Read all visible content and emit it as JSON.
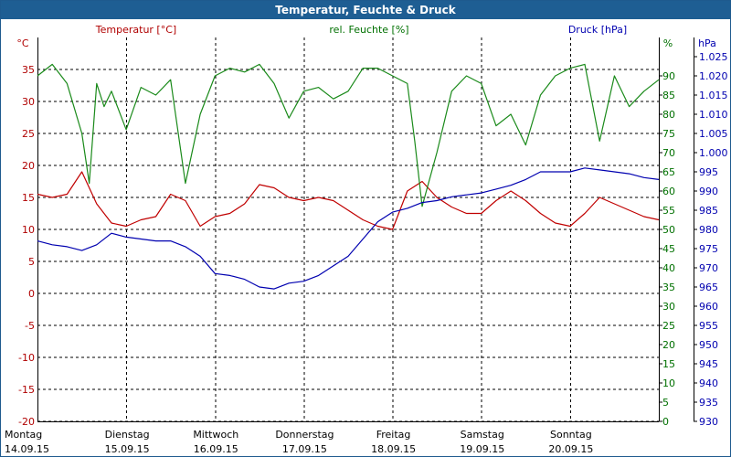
{
  "chart_data": {
    "type": "line",
    "title": "Temperatur, Feuchte & Druck",
    "days": [
      {
        "weekday": "Montag",
        "date": "14.09.15"
      },
      {
        "weekday": "Dienstag",
        "date": "15.09.15"
      },
      {
        "weekday": "Mittwoch",
        "date": "16.09.15"
      },
      {
        "weekday": "Donnerstag",
        "date": "17.09.15"
      },
      {
        "weekday": "Freitag",
        "date": "18.09.15"
      },
      {
        "weekday": "Samstag",
        "date": "19.09.15"
      },
      {
        "weekday": "Sonntag",
        "date": "20.09.15"
      }
    ],
    "x_unit": "hours since 14.09.15 00:00",
    "x_range": [
      0,
      168
    ],
    "axes": {
      "temperature": {
        "label": "Temperatur [°C]",
        "unit": "°C",
        "range": [
          -20,
          40
        ],
        "ticks": [
          -20,
          -15,
          -10,
          -5,
          0,
          5,
          10,
          15,
          20,
          25,
          30,
          35
        ],
        "color": "#b00000"
      },
      "humidity": {
        "label": "rel. Feuchte [%]",
        "unit": "%",
        "range": [
          0,
          100
        ],
        "ticks": [
          0,
          5,
          10,
          15,
          20,
          25,
          30,
          35,
          40,
          45,
          50,
          55,
          60,
          65,
          70,
          75,
          80,
          85,
          90
        ],
        "color": "#007000"
      },
      "pressure": {
        "label": "Druck [hPa]",
        "unit": "hPa",
        "range": [
          930,
          1030
        ],
        "ticks": [
          "930",
          "935",
          "940",
          "945",
          "950",
          "955",
          "960",
          "965",
          "970",
          "975",
          "980",
          "985",
          "990",
          "995",
          "1.000",
          "1.005",
          "1.010",
          "1.015",
          "1.020",
          "1.025"
        ],
        "tick_values": [
          930,
          935,
          940,
          945,
          950,
          955,
          960,
          965,
          970,
          975,
          980,
          985,
          990,
          995,
          1000,
          1005,
          1010,
          1015,
          1020,
          1025
        ],
        "color": "#0000b0"
      }
    },
    "grid": true,
    "series": [
      {
        "name": "Temperatur [°C]",
        "axis": "temperature",
        "color": "#c00000",
        "x": [
          0,
          4,
          8,
          12,
          16,
          20,
          24,
          28,
          32,
          36,
          40,
          44,
          48,
          52,
          56,
          60,
          64,
          68,
          72,
          76,
          80,
          84,
          88,
          92,
          96,
          100,
          104,
          108,
          112,
          116,
          120,
          124,
          128,
          132,
          136,
          140,
          144,
          148,
          152,
          156,
          160,
          164,
          168
        ],
        "y": [
          15.5,
          15,
          15.5,
          19,
          14,
          11,
          10.5,
          11.5,
          12,
          15.5,
          14.5,
          10.5,
          12,
          12.5,
          14,
          17,
          16.5,
          15,
          14.5,
          15,
          14.5,
          13,
          11.5,
          10.5,
          10,
          16,
          17.5,
          15,
          13.5,
          12.5,
          12.5,
          14.5,
          16,
          14.5,
          12.5,
          11,
          10.5,
          12.5,
          15,
          14,
          13,
          12,
          11.5
        ]
      },
      {
        "name": "rel. Feuchte [%]",
        "axis": "humidity",
        "color": "#1a8a1a",
        "x": [
          0,
          4,
          8,
          12,
          14,
          16,
          18,
          20,
          24,
          28,
          32,
          36,
          40,
          44,
          48,
          52,
          56,
          60,
          64,
          68,
          72,
          76,
          80,
          84,
          88,
          92,
          96,
          100,
          102,
          104,
          108,
          112,
          116,
          120,
          124,
          128,
          132,
          136,
          140,
          144,
          148,
          152,
          156,
          160,
          164,
          168
        ],
        "y": [
          90,
          93,
          88,
          75,
          62,
          88,
          82,
          86,
          76,
          87,
          85,
          89,
          62,
          80,
          90,
          92,
          91,
          93,
          88,
          79,
          86,
          87,
          84,
          86,
          92,
          92,
          90,
          88,
          73,
          56,
          70,
          86,
          90,
          88,
          77,
          80,
          72,
          85,
          90,
          92,
          93,
          73,
          90,
          82,
          86,
          89
        ]
      },
      {
        "name": "Druck [hPa]",
        "axis": "pressure",
        "color": "#0000b0",
        "x": [
          0,
          4,
          8,
          12,
          16,
          20,
          24,
          28,
          32,
          36,
          40,
          44,
          48,
          52,
          56,
          60,
          64,
          68,
          72,
          76,
          80,
          84,
          88,
          92,
          96,
          100,
          104,
          108,
          112,
          116,
          120,
          124,
          128,
          132,
          136,
          140,
          144,
          148,
          152,
          156,
          160,
          164,
          168
        ],
        "y": [
          977,
          976,
          975.5,
          974.5,
          976,
          979,
          978,
          977.5,
          977,
          977,
          975.5,
          973,
          968.5,
          968,
          967,
          965,
          964.5,
          966,
          966.5,
          968,
          970.5,
          973,
          977.5,
          982,
          984.5,
          985.5,
          987,
          987.5,
          988.5,
          989,
          989.5,
          990.5,
          991.5,
          993,
          995,
          995,
          995,
          996,
          995.5,
          995,
          994.5,
          993.5,
          993
        ]
      }
    ]
  }
}
